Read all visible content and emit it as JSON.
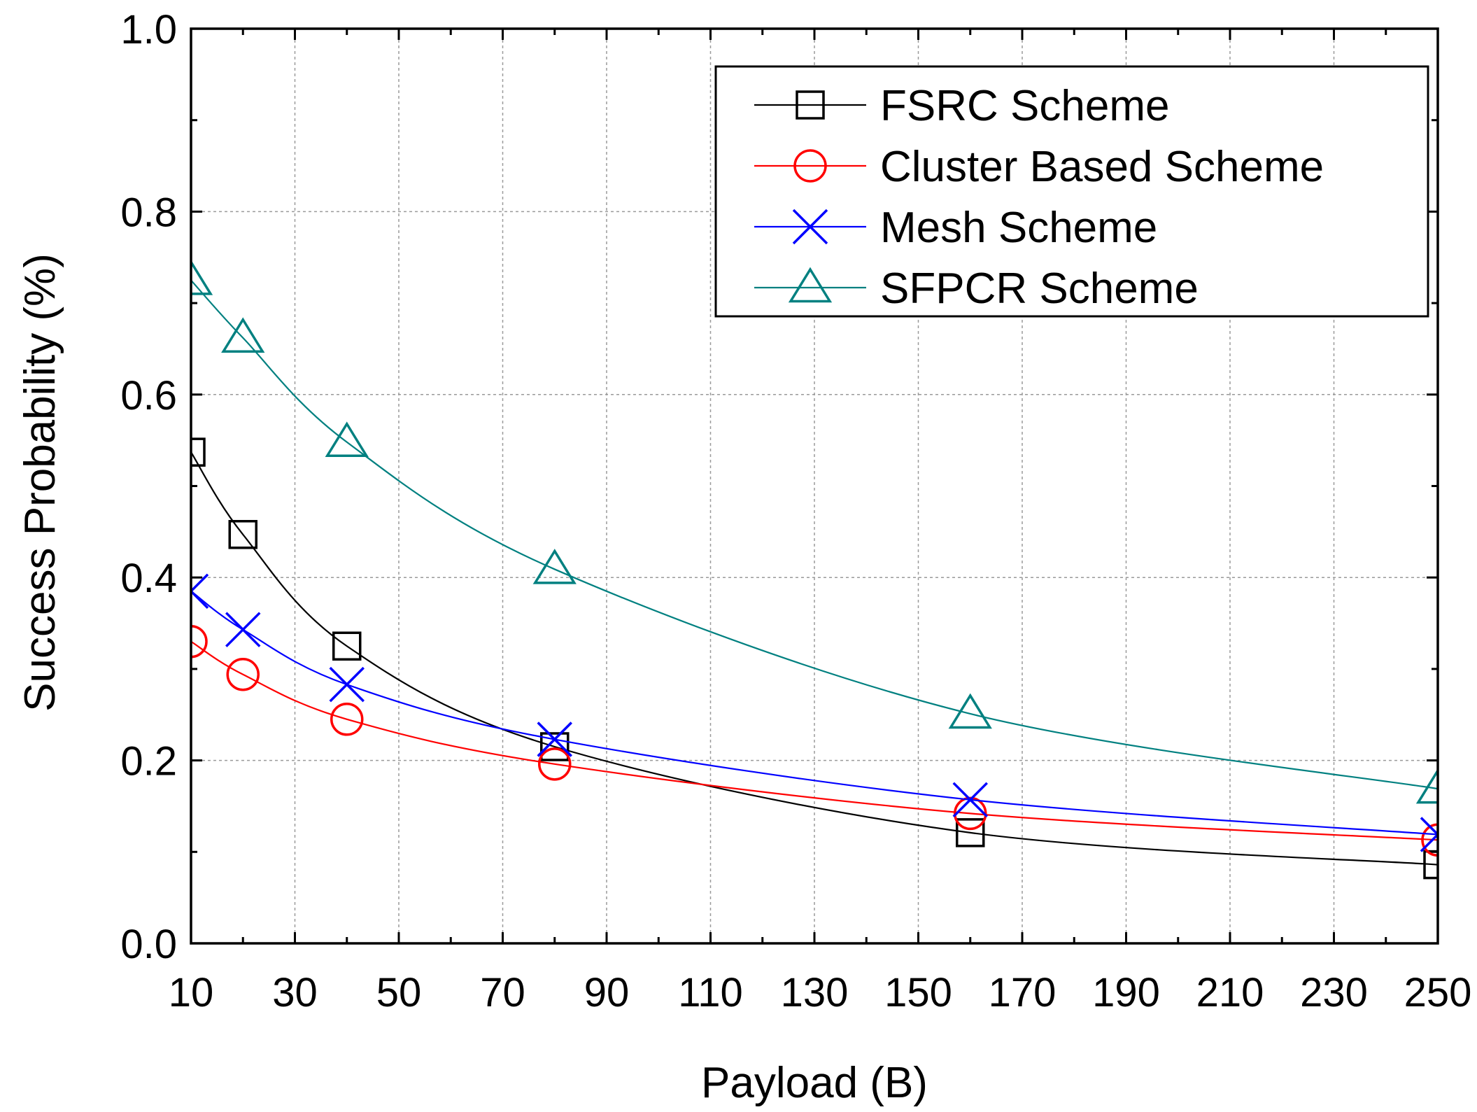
{
  "chart_data": {
    "type": "line",
    "title": "",
    "xlabel": "Payload (B)",
    "ylabel": "Success Probability (%)",
    "xlim": [
      10,
      250
    ],
    "ylim": [
      0.0,
      1.0
    ],
    "grid": true,
    "legend_position": "top-right",
    "x_ticks": [
      "10",
      "30",
      "50",
      "70",
      "90",
      "110",
      "130",
      "150",
      "170",
      "190",
      "210",
      "230",
      "250"
    ],
    "y_ticks": [
      "0.0",
      "0.2",
      "0.4",
      "0.6",
      "0.8",
      "1.0"
    ],
    "x": [
      10,
      20,
      40,
      80,
      160,
      250
    ],
    "series": [
      {
        "name": "FSRC Scheme",
        "color": "#000000",
        "marker": "square",
        "values": [
          0.537,
          0.447,
          0.325,
          0.215,
          0.121,
          0.086
        ]
      },
      {
        "name": "Cluster Based Scheme",
        "color": "#ff0000",
        "marker": "circle",
        "values": [
          0.33,
          0.294,
          0.245,
          0.196,
          0.142,
          0.113
        ]
      },
      {
        "name": "Mesh Scheme",
        "color": "#0000ff",
        "marker": "cross",
        "values": [
          0.385,
          0.343,
          0.283,
          0.223,
          0.157,
          0.119
        ]
      },
      {
        "name": "SFPCR Scheme",
        "color": "#008080",
        "marker": "triangle",
        "values": [
          0.725,
          0.662,
          0.548,
          0.409,
          0.251,
          0.169
        ]
      }
    ]
  }
}
